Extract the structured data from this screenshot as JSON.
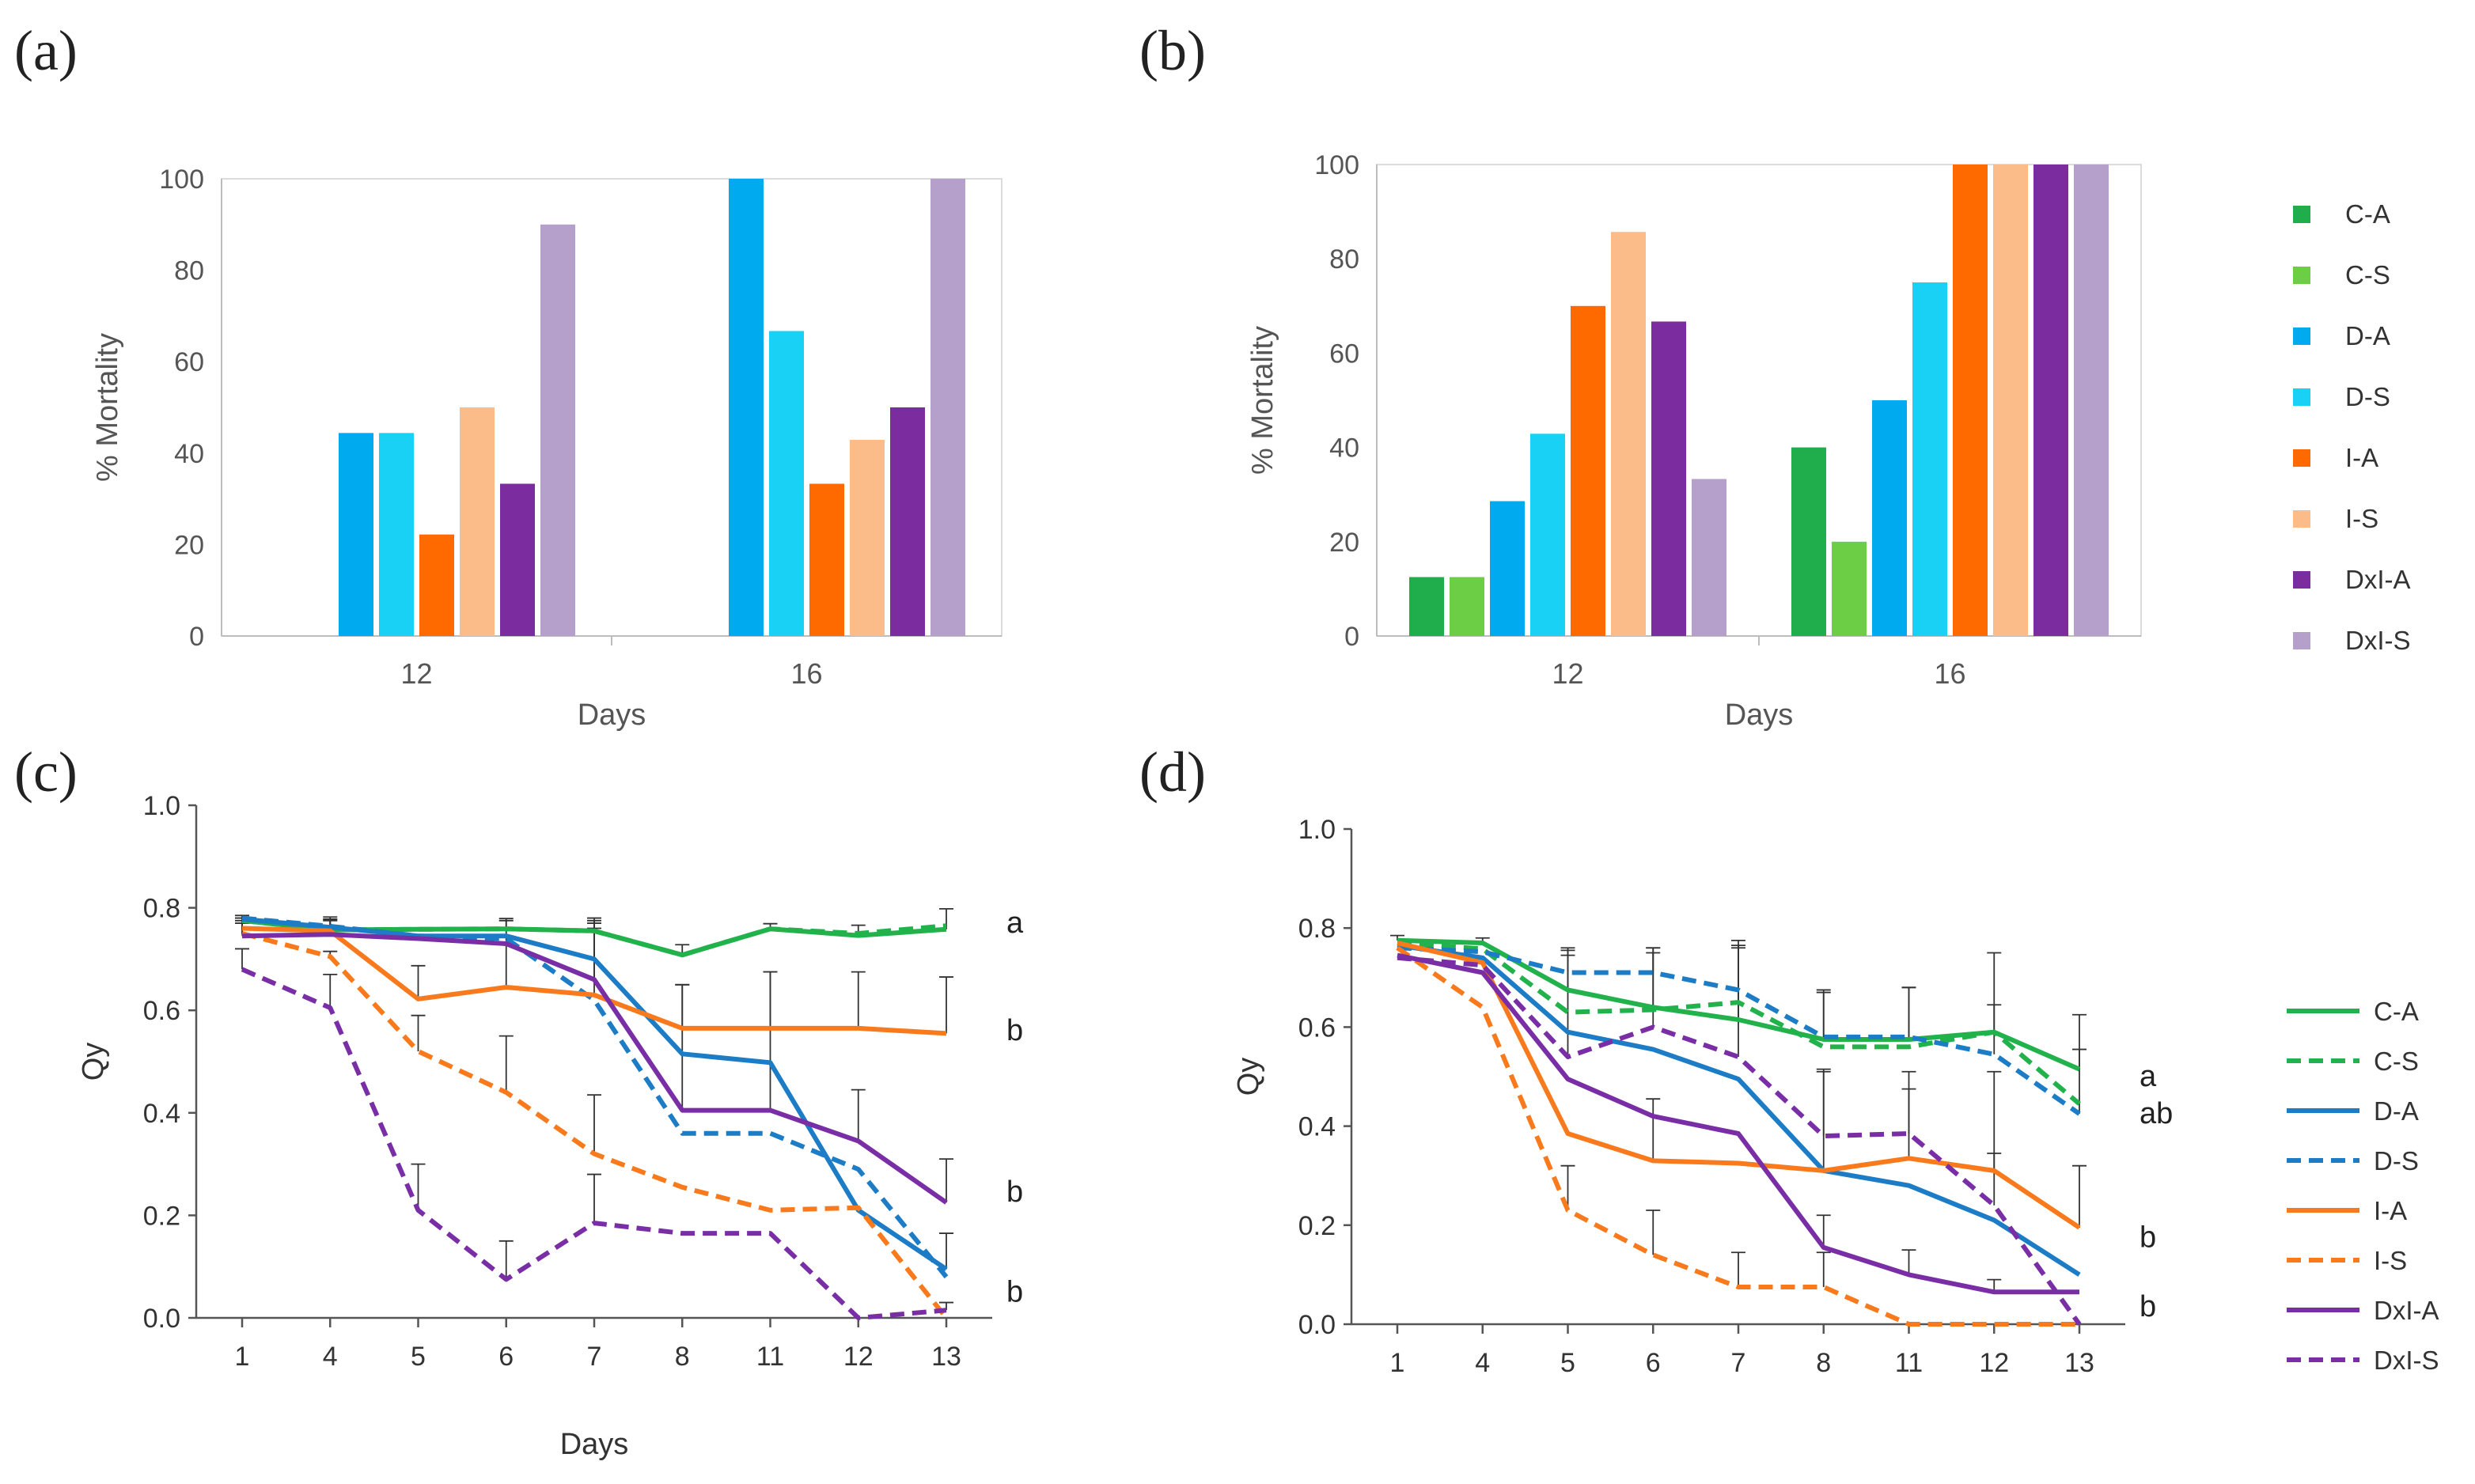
{
  "colors": {
    "C-A": "#1fae4b",
    "C-S": "#6cce45",
    "D-A": "#00aaee",
    "D-S": "#19d0f5",
    "I-A": "#ff6a00",
    "I-S": "#fcbc8a",
    "DxI-A": "#7b2da0",
    "DxI-S": "#b59fcb",
    "line_C": "#22b24c",
    "line_D": "#1c7cc6",
    "line_I": "#f97a1c",
    "line_DxI": "#7a2ea6",
    "axis": "#888888",
    "tick_text": "#555555"
  },
  "chart_data": [
    {
      "id": "a",
      "panel_label": "(a)",
      "type": "bar",
      "title": "",
      "xlabel": "Days",
      "ylabel": "% Mortality",
      "ylim": [
        0,
        100
      ],
      "yticks": [
        0,
        20,
        40,
        60,
        80,
        100
      ],
      "grid": false,
      "categories": [
        "12",
        "16"
      ],
      "series": [
        {
          "name": "C-A",
          "values": [
            0,
            0
          ]
        },
        {
          "name": "C-S",
          "values": [
            0,
            0
          ]
        },
        {
          "name": "D-A",
          "values": [
            44.4,
            100
          ]
        },
        {
          "name": "D-S",
          "values": [
            44.4,
            66.7
          ]
        },
        {
          "name": "I-A",
          "values": [
            22.2,
            33.3
          ]
        },
        {
          "name": "I-S",
          "values": [
            50,
            42.9
          ]
        },
        {
          "name": "DxI-A",
          "values": [
            33.3,
            50
          ]
        },
        {
          "name": "DxI-S",
          "values": [
            90,
            100
          ]
        }
      ]
    },
    {
      "id": "b",
      "panel_label": "(b)",
      "type": "bar",
      "title": "",
      "xlabel": "Days",
      "ylabel": "% Mortality",
      "ylim": [
        0,
        100
      ],
      "yticks": [
        0,
        20,
        40,
        60,
        80,
        100
      ],
      "grid": false,
      "categories": [
        "12",
        "16"
      ],
      "legend": "right",
      "series": [
        {
          "name": "C-A",
          "values": [
            12.5,
            40
          ]
        },
        {
          "name": "C-S",
          "values": [
            12.5,
            20
          ]
        },
        {
          "name": "D-A",
          "values": [
            28.6,
            50
          ]
        },
        {
          "name": "D-S",
          "values": [
            42.9,
            75
          ]
        },
        {
          "name": "I-A",
          "values": [
            70,
            100
          ]
        },
        {
          "name": "I-S",
          "values": [
            85.7,
            100
          ]
        },
        {
          "name": "DxI-A",
          "values": [
            66.7,
            100
          ]
        },
        {
          "name": "DxI-S",
          "values": [
            33.3,
            100
          ]
        }
      ]
    },
    {
      "id": "c",
      "panel_label": "(c)",
      "type": "line",
      "title": "",
      "xlabel": "Days",
      "ylabel": "Qy",
      "ylim": [
        0,
        1
      ],
      "yticks": [
        "0.0",
        "0.2",
        "0.4",
        "0.6",
        "0.8",
        "1.0"
      ],
      "grid": false,
      "categories": [
        "1",
        "4",
        "5",
        "6",
        "7",
        "8",
        "11",
        "12",
        "13"
      ],
      "series": [
        {
          "name": "C-A",
          "style": "solid",
          "values": [
            0.775,
            0.757,
            0.758,
            0.759,
            0.755,
            0.708,
            0.759,
            0.746,
            0.758
          ],
          "err": [
            0.01,
            0.02,
            0.0,
            0.02,
            0.02,
            0.02,
            0.01,
            0.02,
            0.04
          ]
        },
        {
          "name": "C-S",
          "style": "dashed",
          "values": [
            0.775,
            0.757,
            0.758,
            0.759,
            0.755,
            0.708,
            0.759,
            0.75,
            0.765
          ],
          "err": [
            0,
            0,
            0,
            0,
            0,
            0,
            0,
            0,
            0
          ]
        },
        {
          "name": "D-A",
          "style": "solid",
          "values": [
            0.778,
            0.762,
            0.745,
            0.745,
            0.7,
            0.515,
            0.498,
            0.21,
            0.095
          ],
          "err": [
            0,
            0.02,
            0,
            0.03,
            0.07,
            0.0,
            0.0,
            0.0,
            0.07
          ]
        },
        {
          "name": "D-S",
          "style": "dashed",
          "values": [
            0.78,
            0.764,
            0.745,
            0.74,
            0.62,
            0.36,
            0.36,
            0.29,
            0.08
          ],
          "err": [
            0,
            0,
            0,
            0,
            0,
            0,
            0,
            0,
            0
          ]
        },
        {
          "name": "I-A",
          "style": "solid",
          "values": [
            0.76,
            0.755,
            0.622,
            0.645,
            0.63,
            0.565,
            0.565,
            0.565,
            0.555
          ],
          "err": [
            0.01,
            0.02,
            0.065,
            0.1,
            0.15,
            0.085,
            0.11,
            0.11,
            0.11
          ]
        },
        {
          "name": "I-S",
          "style": "dashed",
          "values": [
            0.75,
            0.705,
            0.52,
            0.44,
            0.32,
            0.255,
            0.21,
            0.215,
            0.0
          ],
          "err": [
            0.03,
            0.01,
            0.07,
            0.11,
            0.115,
            0.0,
            0.0,
            0.0,
            0.0
          ]
        },
        {
          "name": "DxI-A",
          "style": "solid",
          "values": [
            0.745,
            0.748,
            0.74,
            0.73,
            0.66,
            0.405,
            0.405,
            0.345,
            0.225
          ],
          "err": [
            0.03,
            0.03,
            0,
            0,
            0.1,
            0.245,
            0.27,
            0.1,
            0.085
          ]
        },
        {
          "name": "DxI-S",
          "style": "dashed",
          "values": [
            0.68,
            0.605,
            0.21,
            0.075,
            0.185,
            0.165,
            0.165,
            0.0,
            0.015
          ],
          "err": [
            0.04,
            0.065,
            0.09,
            0.075,
            0.095,
            0.0,
            0.0,
            0.0,
            0.015
          ]
        }
      ],
      "group_letters": [
        {
          "text": "a",
          "y": 0.77
        },
        {
          "text": "b",
          "y": 0.56
        },
        {
          "text": "b",
          "y": 0.245
        },
        {
          "text": "b",
          "y": 0.05
        }
      ]
    },
    {
      "id": "d",
      "panel_label": "(d)",
      "type": "line",
      "title": "",
      "xlabel": "",
      "ylabel": "Qy",
      "ylim": [
        0,
        1
      ],
      "yticks": [
        "0.0",
        "0.2",
        "0.4",
        "0.6",
        "0.8",
        "1.0"
      ],
      "grid": false,
      "categories": [
        "1",
        "4",
        "5",
        "6",
        "7",
        "8",
        "11",
        "12",
        "13"
      ],
      "legend": "right",
      "series": [
        {
          "name": "C-A",
          "style": "solid",
          "values": [
            0.775,
            0.77,
            0.675,
            0.64,
            0.615,
            0.575,
            0.575,
            0.59,
            0.515
          ],
          "err": [
            0.01,
            0.01,
            0.07,
            0.12,
            0.15,
            0.1,
            0.105,
            0.16,
            0.11
          ]
        },
        {
          "name": "C-S",
          "style": "dashed",
          "values": [
            0.77,
            0.758,
            0.63,
            0.635,
            0.65,
            0.56,
            0.56,
            0.59,
            0.445
          ],
          "err": [
            0,
            0,
            0,
            0,
            0,
            0,
            0,
            0,
            0
          ]
        },
        {
          "name": "D-A",
          "style": "solid",
          "values": [
            0.765,
            0.74,
            0.59,
            0.555,
            0.495,
            0.31,
            0.28,
            0.21,
            0.1
          ],
          "err": [
            0,
            0,
            0,
            0,
            0,
            0,
            0,
            0,
            0
          ]
        },
        {
          "name": "D-S",
          "style": "dashed",
          "values": [
            0.76,
            0.752,
            0.71,
            0.71,
            0.675,
            0.58,
            0.58,
            0.545,
            0.425
          ],
          "err": [
            0,
            0,
            0.05,
            0.05,
            0.1,
            0.09,
            0.1,
            0.1,
            0.13
          ]
        },
        {
          "name": "I-A",
          "style": "solid",
          "values": [
            0.77,
            0.73,
            0.385,
            0.33,
            0.325,
            0.31,
            0.335,
            0.31,
            0.195
          ],
          "err": [
            0,
            0,
            0,
            0.125,
            0,
            0.2,
            0.14,
            0.2,
            0.125
          ]
        },
        {
          "name": "I-S",
          "style": "dashed",
          "values": [
            0.76,
            0.64,
            0.23,
            0.14,
            0.075,
            0.075,
            0.0,
            0.0,
            0.0
          ],
          "err": [
            0,
            0,
            0.09,
            0.09,
            0.07,
            0.07,
            0,
            0,
            0
          ]
        },
        {
          "name": "DxI-A",
          "style": "solid",
          "values": [
            0.745,
            0.71,
            0.495,
            0.42,
            0.385,
            0.155,
            0.1,
            0.065,
            0.065
          ],
          "err": [
            0,
            0,
            0,
            0,
            0,
            0.065,
            0.05,
            0.025,
            0
          ]
        },
        {
          "name": "DxI-S",
          "style": "dashed",
          "values": [
            0.74,
            0.725,
            0.54,
            0.6,
            0.54,
            0.38,
            0.385,
            0.24,
            0.0
          ],
          "err": [
            0,
            0,
            0.215,
            0.15,
            0.22,
            0.135,
            0.125,
            0.105,
            0.0
          ]
        }
      ],
      "group_letters": [
        {
          "text": "a",
          "y": 0.5
        },
        {
          "text": "ab",
          "y": 0.425
        },
        {
          "text": "b",
          "y": 0.175
        },
        {
          "text": "b",
          "y": 0.035
        }
      ]
    }
  ]
}
